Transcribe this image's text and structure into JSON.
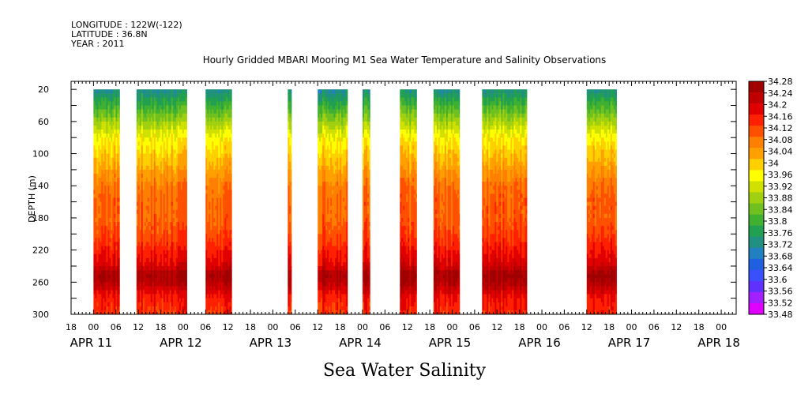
{
  "header": {
    "longitude": "LONGITUDE : 122W(-122)",
    "latitude": "LATITUDE : 36.8N",
    "year": "YEAR : 2011"
  },
  "chart_data": {
    "type": "heatmap",
    "title": "Hourly Gridded MBARI Mooring M1 Sea Water Temperature and Salinity Observations",
    "variable_title": "Sea Water Salinity",
    "ylabel": "DEPTH (m)",
    "ylim": [
      300,
      10
    ],
    "y_ticks": [
      20,
      60,
      100,
      140,
      180,
      220,
      260,
      300
    ],
    "xlim": [
      0,
      178
    ],
    "hour_ticks": [
      {
        "h": 0,
        "label": "18"
      },
      {
        "h": 6,
        "label": "00"
      },
      {
        "h": 12,
        "label": "06"
      },
      {
        "h": 18,
        "label": "12"
      },
      {
        "h": 24,
        "label": "18"
      },
      {
        "h": 30,
        "label": "00"
      },
      {
        "h": 36,
        "label": "06"
      },
      {
        "h": 42,
        "label": "12"
      },
      {
        "h": 48,
        "label": "18"
      },
      {
        "h": 54,
        "label": "00"
      },
      {
        "h": 60,
        "label": "06"
      },
      {
        "h": 66,
        "label": "12"
      },
      {
        "h": 72,
        "label": "18"
      },
      {
        "h": 78,
        "label": "00"
      },
      {
        "h": 84,
        "label": "06"
      },
      {
        "h": 90,
        "label": "12"
      },
      {
        "h": 96,
        "label": "18"
      },
      {
        "h": 102,
        "label": "00"
      },
      {
        "h": 108,
        "label": "06"
      },
      {
        "h": 114,
        "label": "12"
      },
      {
        "h": 120,
        "label": "18"
      },
      {
        "h": 126,
        "label": "00"
      },
      {
        "h": 132,
        "label": "06"
      },
      {
        "h": 138,
        "label": "12"
      },
      {
        "h": 144,
        "label": "18"
      },
      {
        "h": 150,
        "label": "00"
      },
      {
        "h": 156,
        "label": "06"
      },
      {
        "h": 162,
        "label": "12"
      },
      {
        "h": 168,
        "label": "18"
      },
      {
        "h": 174,
        "label": "00"
      },
      {
        "h": 180,
        "label": "06"
      },
      {
        "h": 186,
        "label": "12"
      }
    ],
    "date_labels": [
      {
        "label": "APR 11",
        "h": 6
      },
      {
        "label": "APR 12",
        "h": 30
      },
      {
        "label": "APR 13",
        "h": 54
      },
      {
        "label": "APR 14",
        "h": 78
      },
      {
        "label": "APR 15",
        "h": 102
      },
      {
        "label": "APR 16",
        "h": 126
      },
      {
        "label": "APR 17",
        "h": 150
      },
      {
        "label": "APR 18",
        "h": 174
      }
    ],
    "data_segments": [
      {
        "start": 6,
        "end": 13
      },
      {
        "start": 17.5,
        "end": 31
      },
      {
        "start": 36,
        "end": 43
      },
      {
        "start": 58,
        "end": 59
      },
      {
        "start": 66,
        "end": 74
      },
      {
        "start": 78,
        "end": 80
      },
      {
        "start": 88,
        "end": 92.5
      },
      {
        "start": 97,
        "end": 104
      },
      {
        "start": 110,
        "end": 122
      },
      {
        "start": 138,
        "end": 146
      }
    ],
    "salinity_profile": [
      {
        "depth": 20,
        "value": 33.72
      },
      {
        "depth": 40,
        "value": 33.8
      },
      {
        "depth": 60,
        "value": 33.88
      },
      {
        "depth": 80,
        "value": 33.96
      },
      {
        "depth": 100,
        "value": 34.0
      },
      {
        "depth": 120,
        "value": 34.04
      },
      {
        "depth": 140,
        "value": 34.08
      },
      {
        "depth": 160,
        "value": 34.1
      },
      {
        "depth": 180,
        "value": 34.1
      },
      {
        "depth": 200,
        "value": 34.12
      },
      {
        "depth": 220,
        "value": 34.16
      },
      {
        "depth": 240,
        "value": 34.2
      },
      {
        "depth": 250,
        "value": 34.26
      },
      {
        "depth": 260,
        "value": 34.24
      },
      {
        "depth": 280,
        "value": 34.16
      },
      {
        "depth": 300,
        "value": 34.14
      }
    ],
    "colorbar": {
      "levels": [
        "34.28",
        "34.24",
        "34.2",
        "34.16",
        "34.12",
        "34.08",
        "34.04",
        "34",
        "33.96",
        "33.92",
        "33.88",
        "33.84",
        "33.8",
        "33.76",
        "33.72",
        "33.68",
        "33.64",
        "33.6",
        "33.56",
        "33.52",
        "33.48"
      ],
      "min": 33.48,
      "max": 34.28,
      "colors": [
        "#e000ff",
        "#a020ff",
        "#6030ff",
        "#3a50ff",
        "#2060e0",
        "#2080c0",
        "#209080",
        "#20a050",
        "#40b030",
        "#70c020",
        "#a0d010",
        "#d0e000",
        "#ffff00",
        "#ffd000",
        "#ffa000",
        "#ff8000",
        "#ff5000",
        "#ff2000",
        "#e00000",
        "#c00000",
        "#a00000"
      ]
    }
  }
}
